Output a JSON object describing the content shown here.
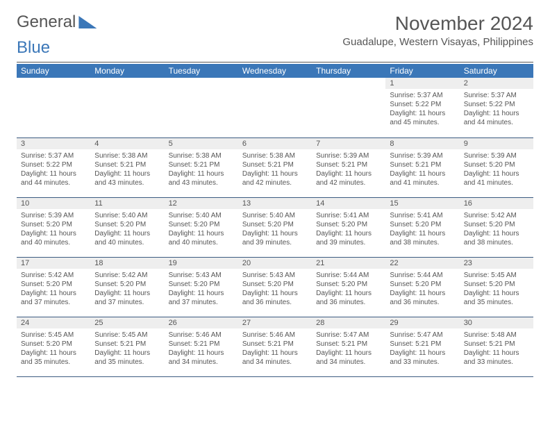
{
  "logo": {
    "word1": "General",
    "word2": "Blue"
  },
  "title": "November 2024",
  "location": "Guadalupe, Western Visayas, Philippines",
  "colors": {
    "header_bg": "#3b77b8",
    "header_text": "#ffffff",
    "daynum_bg": "#eeeeee",
    "text": "#555555",
    "border": "#3b5a80"
  },
  "weekdays": [
    "Sunday",
    "Monday",
    "Tuesday",
    "Wednesday",
    "Thursday",
    "Friday",
    "Saturday"
  ],
  "weeks": [
    [
      null,
      null,
      null,
      null,
      null,
      {
        "n": "1",
        "sunrise": "5:37 AM",
        "sunset": "5:22 PM",
        "daylight": "11 hours and 45 minutes."
      },
      {
        "n": "2",
        "sunrise": "5:37 AM",
        "sunset": "5:22 PM",
        "daylight": "11 hours and 44 minutes."
      }
    ],
    [
      {
        "n": "3",
        "sunrise": "5:37 AM",
        "sunset": "5:22 PM",
        "daylight": "11 hours and 44 minutes."
      },
      {
        "n": "4",
        "sunrise": "5:38 AM",
        "sunset": "5:21 PM",
        "daylight": "11 hours and 43 minutes."
      },
      {
        "n": "5",
        "sunrise": "5:38 AM",
        "sunset": "5:21 PM",
        "daylight": "11 hours and 43 minutes."
      },
      {
        "n": "6",
        "sunrise": "5:38 AM",
        "sunset": "5:21 PM",
        "daylight": "11 hours and 42 minutes."
      },
      {
        "n": "7",
        "sunrise": "5:39 AM",
        "sunset": "5:21 PM",
        "daylight": "11 hours and 42 minutes."
      },
      {
        "n": "8",
        "sunrise": "5:39 AM",
        "sunset": "5:21 PM",
        "daylight": "11 hours and 41 minutes."
      },
      {
        "n": "9",
        "sunrise": "5:39 AM",
        "sunset": "5:20 PM",
        "daylight": "11 hours and 41 minutes."
      }
    ],
    [
      {
        "n": "10",
        "sunrise": "5:39 AM",
        "sunset": "5:20 PM",
        "daylight": "11 hours and 40 minutes."
      },
      {
        "n": "11",
        "sunrise": "5:40 AM",
        "sunset": "5:20 PM",
        "daylight": "11 hours and 40 minutes."
      },
      {
        "n": "12",
        "sunrise": "5:40 AM",
        "sunset": "5:20 PM",
        "daylight": "11 hours and 40 minutes."
      },
      {
        "n": "13",
        "sunrise": "5:40 AM",
        "sunset": "5:20 PM",
        "daylight": "11 hours and 39 minutes."
      },
      {
        "n": "14",
        "sunrise": "5:41 AM",
        "sunset": "5:20 PM",
        "daylight": "11 hours and 39 minutes."
      },
      {
        "n": "15",
        "sunrise": "5:41 AM",
        "sunset": "5:20 PM",
        "daylight": "11 hours and 38 minutes."
      },
      {
        "n": "16",
        "sunrise": "5:42 AM",
        "sunset": "5:20 PM",
        "daylight": "11 hours and 38 minutes."
      }
    ],
    [
      {
        "n": "17",
        "sunrise": "5:42 AM",
        "sunset": "5:20 PM",
        "daylight": "11 hours and 37 minutes."
      },
      {
        "n": "18",
        "sunrise": "5:42 AM",
        "sunset": "5:20 PM",
        "daylight": "11 hours and 37 minutes."
      },
      {
        "n": "19",
        "sunrise": "5:43 AM",
        "sunset": "5:20 PM",
        "daylight": "11 hours and 37 minutes."
      },
      {
        "n": "20",
        "sunrise": "5:43 AM",
        "sunset": "5:20 PM",
        "daylight": "11 hours and 36 minutes."
      },
      {
        "n": "21",
        "sunrise": "5:44 AM",
        "sunset": "5:20 PM",
        "daylight": "11 hours and 36 minutes."
      },
      {
        "n": "22",
        "sunrise": "5:44 AM",
        "sunset": "5:20 PM",
        "daylight": "11 hours and 36 minutes."
      },
      {
        "n": "23",
        "sunrise": "5:45 AM",
        "sunset": "5:20 PM",
        "daylight": "11 hours and 35 minutes."
      }
    ],
    [
      {
        "n": "24",
        "sunrise": "5:45 AM",
        "sunset": "5:20 PM",
        "daylight": "11 hours and 35 minutes."
      },
      {
        "n": "25",
        "sunrise": "5:45 AM",
        "sunset": "5:21 PM",
        "daylight": "11 hours and 35 minutes."
      },
      {
        "n": "26",
        "sunrise": "5:46 AM",
        "sunset": "5:21 PM",
        "daylight": "11 hours and 34 minutes."
      },
      {
        "n": "27",
        "sunrise": "5:46 AM",
        "sunset": "5:21 PM",
        "daylight": "11 hours and 34 minutes."
      },
      {
        "n": "28",
        "sunrise": "5:47 AM",
        "sunset": "5:21 PM",
        "daylight": "11 hours and 34 minutes."
      },
      {
        "n": "29",
        "sunrise": "5:47 AM",
        "sunset": "5:21 PM",
        "daylight": "11 hours and 33 minutes."
      },
      {
        "n": "30",
        "sunrise": "5:48 AM",
        "sunset": "5:21 PM",
        "daylight": "11 hours and 33 minutes."
      }
    ]
  ],
  "labels": {
    "sunrise": "Sunrise: ",
    "sunset": "Sunset: ",
    "daylight": "Daylight: "
  }
}
